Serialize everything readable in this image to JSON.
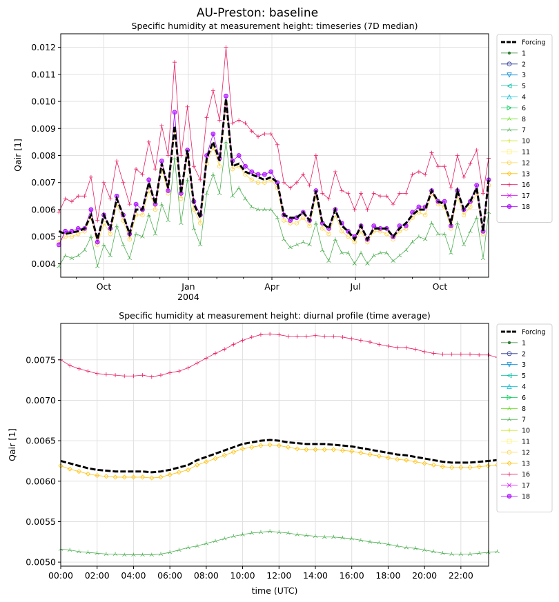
{
  "figure": {
    "title": "AU-Preston: baseline"
  },
  "legend_entries": [
    "Forcing",
    "1",
    "2",
    "3",
    "5",
    "4",
    "6",
    "8",
    "7",
    "10",
    "11",
    "12",
    "13",
    "16",
    "17",
    "18"
  ],
  "series_styles": [
    {
      "name": "Forcing",
      "color": "#000000",
      "marker": "none"
    },
    {
      "name": "1",
      "color": "#2e7d32",
      "marker": "dot"
    },
    {
      "name": "2",
      "color": "#283593",
      "marker": "circle"
    },
    {
      "name": "3",
      "color": "#0288d1",
      "marker": "tri_down"
    },
    {
      "name": "5",
      "color": "#00bfa5",
      "marker": "tri_left"
    },
    {
      "name": "4",
      "color": "#00bcd4",
      "marker": "tri_up"
    },
    {
      "name": "6",
      "color": "#00c853",
      "marker": "tri_right"
    },
    {
      "name": "8",
      "color": "#64dd17",
      "marker": "tri1"
    },
    {
      "name": "7",
      "color": "#4caf50",
      "marker": "tri2"
    },
    {
      "name": "10",
      "color": "#c6e000",
      "marker": "plus"
    },
    {
      "name": "11",
      "color": "#fff176",
      "marker": "square"
    },
    {
      "name": "12",
      "color": "#ffd54f",
      "marker": "hexagon"
    },
    {
      "name": "13",
      "color": "#ffc107",
      "marker": "diamond"
    },
    {
      "name": "16",
      "color": "#e91e63",
      "marker": "plus"
    },
    {
      "name": "17",
      "color": "#d500f9",
      "marker": "x"
    },
    {
      "name": "18",
      "color": "#aa00ff",
      "marker": "octagon"
    }
  ],
  "chart_data": [
    {
      "type": "line",
      "title": "Specific humidity at measurement height: timeseries (7D median)",
      "ylabel": "Qair [1]",
      "ylim": [
        0.0035,
        0.0125
      ],
      "yticks": [
        "0.004",
        "0.005",
        "0.006",
        "0.007",
        "0.008",
        "0.009",
        "0.010",
        "0.011",
        "0.012"
      ],
      "xticks": [
        {
          "label": "Oct",
          "sub": ""
        },
        {
          "label": "Jan",
          "sub": "2004"
        },
        {
          "label": "Apr",
          "sub": ""
        },
        {
          "label": "Jul",
          "sub": ""
        },
        {
          "label": "Oct",
          "sub": ""
        }
      ],
      "x_start": "2003-08-13",
      "x_step_days": 7,
      "grid": true,
      "legend_position": "outside-right",
      "series": [
        {
          "name": "Forcing",
          "values": [
            0.0052,
            0.0051,
            0.00515,
            0.0052,
            0.0053,
            0.0058,
            0.0049,
            0.0058,
            0.0053,
            0.0064,
            0.0058,
            0.0051,
            0.006,
            0.006,
            0.007,
            0.0062,
            0.0077,
            0.0068,
            0.0091,
            0.0066,
            0.0082,
            0.0062,
            0.0057,
            0.0079,
            0.0085,
            0.0078,
            0.0101,
            0.0076,
            0.0077,
            0.0074,
            0.0073,
            0.0072,
            0.0071,
            0.0072,
            0.007,
            0.0058,
            0.0057,
            0.0057,
            0.0059,
            0.0056,
            0.0067,
            0.0055,
            0.0053,
            0.006,
            0.0054,
            0.0052,
            0.0049,
            0.0054,
            0.0049,
            0.0053,
            0.0053,
            0.0053,
            0.005,
            0.0053,
            0.0055,
            0.0058,
            0.006,
            0.006,
            0.0067,
            0.0063,
            0.0062,
            0.0055,
            0.0067,
            0.006,
            0.0063,
            0.0068,
            0.0052,
            0.0071
          ]
        },
        {
          "name": "16",
          "values": [
            0.0059,
            0.0064,
            0.0063,
            0.0065,
            0.0065,
            0.0072,
            0.0056,
            0.007,
            0.0064,
            0.0078,
            0.007,
            0.0062,
            0.0075,
            0.0073,
            0.0085,
            0.0075,
            0.0091,
            0.008,
            0.01145,
            0.008,
            0.0098,
            0.0076,
            0.0071,
            0.0094,
            0.0104,
            0.0093,
            0.012,
            0.0092,
            0.0093,
            0.0092,
            0.0089,
            0.0087,
            0.0088,
            0.0088,
            0.0084,
            0.007,
            0.0068,
            0.007,
            0.0073,
            0.0069,
            0.008,
            0.0066,
            0.0064,
            0.0074,
            0.0067,
            0.0066,
            0.006,
            0.0066,
            0.006,
            0.0066,
            0.0065,
            0.0065,
            0.0062,
            0.0066,
            0.0066,
            0.0073,
            0.0074,
            0.0073,
            0.0081,
            0.0076,
            0.0076,
            0.0068,
            0.008,
            0.0072,
            0.0077,
            0.0082,
            0.0066,
            0.0079
          ]
        },
        {
          "name": "7",
          "values": [
            0.0039,
            0.0043,
            0.0042,
            0.0043,
            0.0045,
            0.005,
            0.0039,
            0.0047,
            0.0043,
            0.0054,
            0.0047,
            0.0042,
            0.0051,
            0.005,
            0.0058,
            0.0051,
            0.0062,
            0.0056,
            0.0079,
            0.0055,
            0.0071,
            0.0053,
            0.0047,
            0.0066,
            0.0073,
            0.0066,
            0.0085,
            0.0065,
            0.0068,
            0.0064,
            0.0061,
            0.006,
            0.006,
            0.006,
            0.0057,
            0.0049,
            0.0046,
            0.0047,
            0.0048,
            0.0047,
            0.0055,
            0.0045,
            0.0041,
            0.0049,
            0.0044,
            0.0044,
            0.004,
            0.0044,
            0.004,
            0.0043,
            0.0044,
            0.0044,
            0.0041,
            0.0043,
            0.0045,
            0.0048,
            0.005,
            0.0049,
            0.0055,
            0.0051,
            0.0051,
            0.0044,
            0.0055,
            0.0047,
            0.0052,
            0.0057,
            0.0042,
            0.0059
          ]
        },
        {
          "name": "12",
          "values": [
            0.0048,
            0.005,
            0.005,
            0.0051,
            0.0052,
            0.0057,
            0.0047,
            0.0055,
            0.0051,
            0.0062,
            0.0056,
            0.0049,
            0.0058,
            0.0058,
            0.0067,
            0.006,
            0.0075,
            0.0066,
            0.0089,
            0.0064,
            0.008,
            0.006,
            0.0055,
            0.0077,
            0.0083,
            0.0076,
            0.0099,
            0.0075,
            0.0076,
            0.0073,
            0.0071,
            0.007,
            0.007,
            0.0071,
            0.0068,
            0.0056,
            0.0055,
            0.0055,
            0.0057,
            0.0054,
            0.0065,
            0.0053,
            0.0051,
            0.0058,
            0.0052,
            0.005,
            0.0048,
            0.0052,
            0.0048,
            0.0052,
            0.0052,
            0.0051,
            0.0049,
            0.0052,
            0.0053,
            0.0057,
            0.0059,
            0.0058,
            0.0066,
            0.0062,
            0.0061,
            0.0053,
            0.0065,
            0.0058,
            0.0061,
            0.0066,
            0.0051,
            0.0069
          ]
        },
        {
          "name": "18",
          "values": [
            0.0047,
            0.0052,
            0.0052,
            0.0053,
            0.0053,
            0.006,
            0.0048,
            0.0058,
            0.0053,
            0.0065,
            0.0058,
            0.0051,
            0.0062,
            0.006,
            0.0071,
            0.0062,
            0.0078,
            0.0067,
            0.0096,
            0.0066,
            0.0082,
            0.0063,
            0.0058,
            0.008,
            0.0088,
            0.0079,
            0.0102,
            0.0078,
            0.008,
            0.0076,
            0.0074,
            0.0073,
            0.0073,
            0.0074,
            0.007,
            0.0058,
            0.0056,
            0.0057,
            0.0059,
            0.0056,
            0.0067,
            0.0055,
            0.0053,
            0.006,
            0.0055,
            0.0052,
            0.005,
            0.0054,
            0.0049,
            0.0054,
            0.0053,
            0.0053,
            0.005,
            0.0054,
            0.0054,
            0.0059,
            0.0061,
            0.0061,
            0.0067,
            0.0063,
            0.0063,
            0.0054,
            0.0067,
            0.006,
            0.0063,
            0.0069,
            0.0052,
            0.0071
          ]
        }
      ]
    },
    {
      "type": "line",
      "title": "Specific humidity at measurement height: diurnal profile (time average)",
      "xlabel": "time (UTC)",
      "ylabel": "Qair [1]",
      "ylim": [
        0.00495,
        0.00795
      ],
      "yticks": [
        "0.0050",
        "0.0055",
        "0.0060",
        "0.0065",
        "0.0070",
        "0.0075"
      ],
      "xticks": [
        "00:00",
        "02:00",
        "04:00",
        "06:00",
        "08:00",
        "10:00",
        "12:00",
        "14:00",
        "16:00",
        "18:00",
        "20:00",
        "22:00"
      ],
      "x_hours_step": 0.5,
      "grid": true,
      "legend_position": "outside-right",
      "series": [
        {
          "name": "16",
          "values": [
            0.0075,
            0.00743,
            0.00739,
            0.00736,
            0.00733,
            0.00732,
            0.00731,
            0.0073,
            0.0073,
            0.00731,
            0.00729,
            0.00731,
            0.00734,
            0.00736,
            0.0074,
            0.00746,
            0.00752,
            0.00758,
            0.00763,
            0.00769,
            0.00774,
            0.00778,
            0.00781,
            0.00782,
            0.00781,
            0.00779,
            0.00779,
            0.00779,
            0.0078,
            0.00779,
            0.00779,
            0.00778,
            0.00776,
            0.00774,
            0.00772,
            0.00769,
            0.00767,
            0.00765,
            0.00765,
            0.00763,
            0.0076,
            0.00758,
            0.00757,
            0.00757,
            0.00757,
            0.00757,
            0.00756,
            0.00756,
            0.00753
          ]
        },
        {
          "name": "Forcing",
          "values": [
            0.00625,
            0.00622,
            0.00619,
            0.00616,
            0.00614,
            0.00613,
            0.00612,
            0.00612,
            0.00612,
            0.00612,
            0.00611,
            0.00612,
            0.00614,
            0.00617,
            0.0062,
            0.00626,
            0.0063,
            0.00634,
            0.00638,
            0.00642,
            0.00646,
            0.00648,
            0.0065,
            0.00651,
            0.0065,
            0.00648,
            0.00647,
            0.00646,
            0.00646,
            0.00646,
            0.00645,
            0.00644,
            0.00643,
            0.00641,
            0.00639,
            0.00637,
            0.00635,
            0.00633,
            0.00632,
            0.0063,
            0.00628,
            0.00626,
            0.00624,
            0.00623,
            0.00623,
            0.00623,
            0.00624,
            0.00625,
            0.00626
          ]
        },
        {
          "name": "13",
          "values": [
            0.00619,
            0.00615,
            0.00612,
            0.00609,
            0.00607,
            0.00606,
            0.00605,
            0.00605,
            0.00605,
            0.00605,
            0.00604,
            0.00605,
            0.00608,
            0.00611,
            0.00614,
            0.0062,
            0.00624,
            0.00628,
            0.00632,
            0.00636,
            0.0064,
            0.00642,
            0.00644,
            0.00645,
            0.00644,
            0.00642,
            0.0064,
            0.00639,
            0.00639,
            0.00639,
            0.00639,
            0.00638,
            0.00637,
            0.00635,
            0.00633,
            0.00631,
            0.00629,
            0.00627,
            0.00626,
            0.00624,
            0.00622,
            0.0062,
            0.00618,
            0.00617,
            0.00617,
            0.00617,
            0.00618,
            0.00619,
            0.0062
          ]
        },
        {
          "name": "7",
          "values": [
            0.00516,
            0.00515,
            0.00513,
            0.00512,
            0.00511,
            0.0051,
            0.0051,
            0.00509,
            0.00509,
            0.00509,
            0.00509,
            0.0051,
            0.00512,
            0.00515,
            0.00518,
            0.0052,
            0.00523,
            0.00526,
            0.00529,
            0.00532,
            0.00534,
            0.00536,
            0.00537,
            0.00538,
            0.00537,
            0.00536,
            0.00534,
            0.00533,
            0.00532,
            0.00531,
            0.00531,
            0.0053,
            0.00529,
            0.00527,
            0.00525,
            0.00524,
            0.00522,
            0.0052,
            0.00518,
            0.00517,
            0.00515,
            0.00513,
            0.00511,
            0.0051,
            0.0051,
            0.0051,
            0.00511,
            0.00512,
            0.00513
          ]
        }
      ]
    }
  ]
}
